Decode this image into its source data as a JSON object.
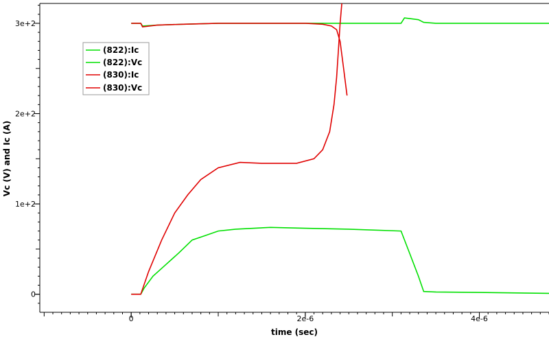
{
  "chart_data": {
    "type": "line",
    "xlabel": "time (sec)",
    "ylabel": "Vc (V) and Ic (A)",
    "xlim": [
      -1.05e-06,
      4.8e-06
    ],
    "ylim": [
      -20,
      322
    ],
    "x_ticks": [
      {
        "value": 0,
        "label": "0"
      },
      {
        "value": 2e-06,
        "label": "2e-6"
      },
      {
        "value": 4e-06,
        "label": "4e-6"
      }
    ],
    "y_ticks": [
      {
        "value": 0,
        "label": "0"
      },
      {
        "value": 100,
        "label": "1e+2"
      },
      {
        "value": 200,
        "label": "2e+2"
      },
      {
        "value": 300,
        "label": "3e+2"
      }
    ],
    "grid": false,
    "legend_position": "top-left",
    "series": [
      {
        "name": "(822):Ic",
        "color": "#00e000",
        "points": [
          [
            0,
            0
          ],
          [
            1.1e-07,
            0
          ],
          [
            1.5e-07,
            7
          ],
          [
            2.5e-07,
            20
          ],
          [
            4e-07,
            33
          ],
          [
            5.5e-07,
            46
          ],
          [
            7e-07,
            60
          ],
          [
            8.5e-07,
            65
          ],
          [
            1e-06,
            70
          ],
          [
            1.2e-06,
            72
          ],
          [
            1.6e-06,
            74
          ],
          [
            2e-06,
            73
          ],
          [
            2.5e-06,
            72
          ],
          [
            3.1e-06,
            70
          ],
          [
            3.2e-06,
            45
          ],
          [
            3.3e-06,
            20
          ],
          [
            3.36e-06,
            3
          ],
          [
            3.5e-06,
            2.5
          ],
          [
            4e-06,
            2
          ],
          [
            4.8e-06,
            1
          ]
        ]
      },
      {
        "name": "(822):Vc",
        "color": "#00e000",
        "points": [
          [
            0,
            300
          ],
          [
            1.1e-07,
            300
          ],
          [
            1.3e-07,
            297
          ],
          [
            3e-07,
            298
          ],
          [
            6e-07,
            299
          ],
          [
            1e-06,
            300
          ],
          [
            2e-06,
            300
          ],
          [
            3.1e-06,
            300
          ],
          [
            3.14e-06,
            306
          ],
          [
            3.3e-06,
            304
          ],
          [
            3.36e-06,
            301
          ],
          [
            3.5e-06,
            300
          ],
          [
            4e-06,
            300
          ],
          [
            4.8e-06,
            300
          ]
        ]
      },
      {
        "name": "(830):Ic",
        "color": "#e00000",
        "points": [
          [
            0,
            0
          ],
          [
            1.1e-07,
            0
          ],
          [
            2e-07,
            25
          ],
          [
            3.5e-07,
            60
          ],
          [
            5e-07,
            90
          ],
          [
            6.5e-07,
            110
          ],
          [
            8e-07,
            127
          ],
          [
            1e-06,
            140
          ],
          [
            1.25e-06,
            146
          ],
          [
            1.5e-06,
            145
          ],
          [
            1.9e-06,
            145
          ],
          [
            2.1e-06,
            150
          ],
          [
            2.2e-06,
            160
          ],
          [
            2.28e-06,
            180
          ],
          [
            2.33e-06,
            210
          ],
          [
            2.36e-06,
            240
          ],
          [
            2.38e-06,
            270
          ],
          [
            2.4e-06,
            300
          ],
          [
            2.42e-06,
            322
          ]
        ]
      },
      {
        "name": "(830):Vc",
        "color": "#e00000",
        "points": [
          [
            0,
            300
          ],
          [
            1.1e-07,
            300
          ],
          [
            1.3e-07,
            296
          ],
          [
            3e-07,
            298
          ],
          [
            6e-07,
            299
          ],
          [
            1e-06,
            300
          ],
          [
            1.5e-06,
            300
          ],
          [
            2e-06,
            300
          ],
          [
            2.2e-06,
            299
          ],
          [
            2.3e-06,
            297
          ],
          [
            2.36e-06,
            293
          ],
          [
            2.4e-06,
            280
          ],
          [
            2.44e-06,
            250
          ],
          [
            2.48e-06,
            220
          ]
        ]
      }
    ]
  }
}
